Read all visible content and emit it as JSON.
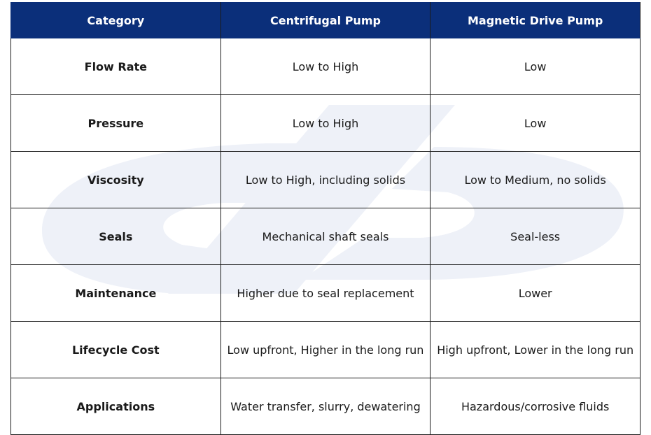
{
  "table": {
    "header": [
      "Category",
      "Centrifugal Pump",
      "Magnetic Drive Pump"
    ],
    "rows": [
      [
        "Flow Rate",
        "Low to High",
        "Low"
      ],
      [
        "Pressure",
        "Low to High",
        "Low"
      ],
      [
        "Viscosity",
        "Low to High, including solids",
        "Low to Medium, no solids"
      ],
      [
        "Seals",
        "Mechanical shaft seals",
        "Seal-less"
      ],
      [
        "Maintenance",
        "Higher due to seal replacement",
        "Lower"
      ],
      [
        "Lifecycle Cost",
        "Low upfront, Higher in the long run",
        "High upfront, Lower in the long run"
      ],
      [
        "Applications",
        "Water transfer, slurry, dewatering",
        "Hazardous/corrosive fluids"
      ]
    ]
  }
}
